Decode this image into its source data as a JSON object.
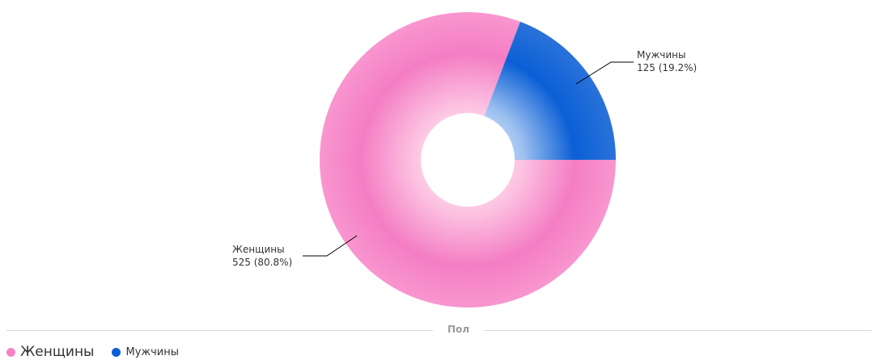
{
  "chart_data": {
    "type": "pie",
    "title": "Пол",
    "categories": [
      "Женщины",
      "Мужчины"
    ],
    "values": [
      525,
      125
    ],
    "percentages": [
      "80.8%",
      "19.2%"
    ],
    "data_labels": [
      {
        "name": "Женщины",
        "value_text": "525 (80.8%)"
      },
      {
        "name": "Мужчины",
        "value_text": "125 (19.2%)"
      }
    ],
    "colors": [
      "#f583c6",
      "#0b5fd6"
    ],
    "donut": true,
    "legend_position": "bottom-left"
  }
}
